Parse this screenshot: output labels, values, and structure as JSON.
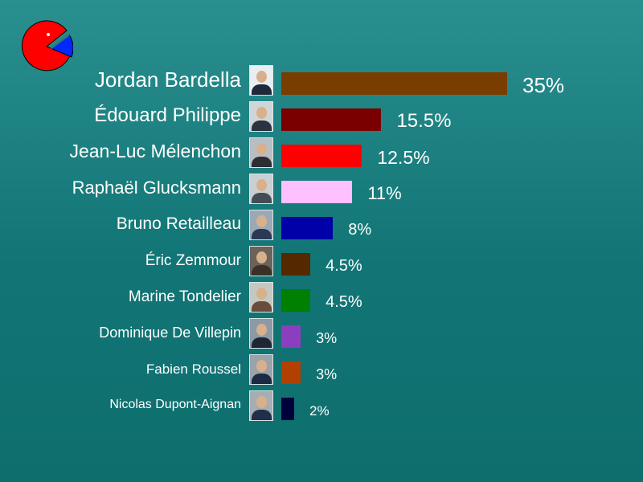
{
  "chart_data": {
    "type": "bar",
    "orientation": "horizontal",
    "categories": [
      "Jordan Bardella",
      "Édouard Philippe",
      "Jean-Luc Mélenchon",
      "Raphaël Glucksmann",
      "Bruno Retailleau",
      "Éric Zemmour",
      "Marine Tondelier",
      "Dominique De Villepin",
      "Fabien Roussel",
      "Nicolas Dupont-Aignan"
    ],
    "values": [
      35,
      15.5,
      12.5,
      11,
      8,
      4.5,
      4.5,
      3,
      3,
      2
    ],
    "value_labels": [
      "35%",
      "15.5%",
      "12.5%",
      "11%",
      "8%",
      "4.5%",
      "4.5%",
      "3%",
      "3%",
      "2%"
    ],
    "colors": [
      "#7a3d00",
      "#7a0000",
      "#ff0000",
      "#ffc0ff",
      "#0000a8",
      "#552800",
      "#007f00",
      "#8b3fbf",
      "#b33f00",
      "#00003a"
    ],
    "grid": false,
    "legend": "none"
  },
  "logo": {
    "icon": "pie-chart-logo-icon",
    "colors": {
      "main": "#ff0000",
      "slice": "#0028ff",
      "outline": "#000000",
      "dot": "#ffffff"
    }
  }
}
